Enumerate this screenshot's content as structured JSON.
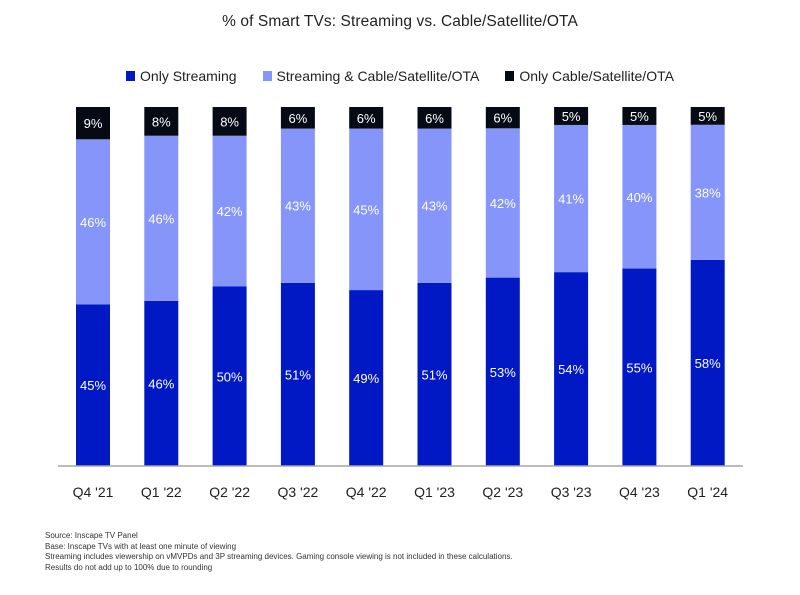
{
  "chart_data": {
    "type": "bar",
    "stacked": true,
    "title": "% of Smart TVs: Streaming vs. Cable/Satellite/OTA",
    "xlabel": "",
    "ylabel": "",
    "ylim": [
      0,
      100
    ],
    "grid": false,
    "legend_position": "top-center",
    "categories": [
      "Q4 '21",
      "Q1 '22",
      "Q2 '22",
      "Q3 '22",
      "Q4 '22",
      "Q1 '23",
      "Q2 '23",
      "Q3 '23",
      "Q4 '23",
      "Q1 '24"
    ],
    "series": [
      {
        "name": "Only Streaming",
        "color": "#0019c5",
        "label_color": "#ffffff",
        "values": [
          45,
          46,
          50,
          51,
          49,
          51,
          53,
          54,
          55,
          58
        ]
      },
      {
        "name": "Streaming & Cable/Satellite/OTA",
        "color": "#8595fa",
        "label_color": "#ffffff",
        "values": [
          46,
          46,
          42,
          43,
          45,
          43,
          42,
          41,
          40,
          38
        ]
      },
      {
        "name": "Only Cable/Satellite/OTA",
        "color": "#050a14",
        "label_color": "#ffffff",
        "values": [
          9,
          8,
          8,
          6,
          6,
          6,
          6,
          5,
          5,
          5
        ]
      }
    ],
    "value_suffix": "%"
  },
  "footnotes": [
    "Source: Inscape TV Panel",
    "Base: Inscape TVs with at least one minute of viewing",
    "Streaming includes viewership on vMVPDs and 3P streaming devices. Gaming console viewing is not included in these calculations.",
    "Results do not add up to 100% due to rounding"
  ]
}
